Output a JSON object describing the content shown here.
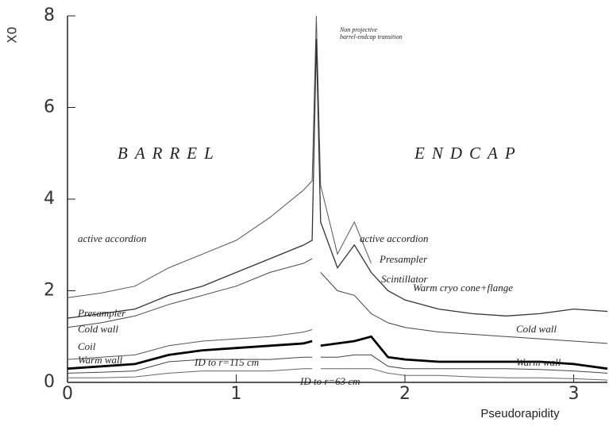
{
  "chart_data": {
    "type": "line",
    "ylabel": "X0",
    "xlabel": "Pseudorapidity",
    "x": [
      0,
      0.2,
      0.4,
      0.6,
      0.8,
      1.0,
      1.2,
      1.4,
      1.45,
      1.475,
      1.5,
      1.6,
      1.7,
      1.8,
      1.9,
      2.0,
      2.2,
      2.4,
      2.6,
      2.8,
      3.0,
      3.2
    ],
    "series": [
      {
        "color": "#555",
        "values": [
          1.85,
          1.95,
          2.1,
          2.5,
          2.8,
          3.1,
          3.6,
          4.2,
          4.4,
          8.0,
          4.3,
          2.8,
          3.5,
          2.6,
          null,
          null,
          null,
          null,
          null,
          null,
          null,
          null
        ]
      },
      {
        "color": "#333",
        "values": [
          1.4,
          1.5,
          1.6,
          1.9,
          2.1,
          2.4,
          2.7,
          3.0,
          3.1,
          7.5,
          3.5,
          2.5,
          3.0,
          2.4,
          2.0,
          1.8,
          1.6,
          1.5,
          1.45,
          1.5,
          1.6,
          1.55
        ]
      },
      {
        "color": "#444",
        "values": [
          1.2,
          1.3,
          1.45,
          1.7,
          1.9,
          2.1,
          2.4,
          2.6,
          2.7,
          null,
          2.4,
          2.0,
          1.9,
          1.5,
          1.3,
          1.2,
          1.1,
          1.05,
          1.0,
          0.95,
          0.9,
          0.85
        ]
      },
      {
        "color": "#555",
        "values": [
          0.5,
          0.55,
          0.6,
          0.8,
          0.9,
          0.95,
          1.0,
          1.1,
          1.15,
          null,
          null,
          null,
          null,
          null,
          null,
          null,
          null,
          null,
          null,
          null,
          null,
          null
        ]
      },
      {
        "color": "#000",
        "values": [
          0.3,
          0.35,
          0.4,
          0.6,
          0.7,
          0.75,
          0.8,
          0.85,
          0.9,
          null,
          0.8,
          0.85,
          0.9,
          1.0,
          0.55,
          0.5,
          0.45,
          0.45,
          0.45,
          0.45,
          0.4,
          0.3
        ]
      },
      {
        "color": "#444",
        "values": [
          0.2,
          0.22,
          0.25,
          0.45,
          0.5,
          0.5,
          0.5,
          0.55,
          0.55,
          null,
          0.55,
          0.55,
          0.6,
          0.6,
          0.35,
          0.3,
          0.3,
          0.3,
          0.3,
          0.28,
          0.25,
          0.2
        ]
      },
      {
        "color": "#666",
        "values": [
          0.1,
          0.1,
          0.12,
          0.2,
          0.25,
          0.25,
          0.25,
          0.3,
          0.3,
          null,
          0.3,
          0.3,
          0.3,
          0.3,
          0.2,
          0.15,
          0.15,
          0.12,
          0.1,
          0.1,
          0.08,
          0.05
        ]
      }
    ],
    "annotations": [
      "BARREL",
      "ENDCAP",
      "active accordion",
      "active accordion",
      "Presampler",
      "Presampler",
      "Scintillator",
      "Warm cryo cone+flange",
      "Cold wall",
      "Cold wall",
      "Coil",
      "Warm wall",
      "Warm wall",
      "ID to r=115 cm",
      "ID to r=63 cm",
      "Non projective",
      "barrel-endcap transition"
    ],
    "xlim": [
      0,
      3.2
    ],
    "ylim": [
      0,
      8
    ],
    "xticks": [
      0,
      1,
      2,
      3
    ],
    "yticks": [
      0,
      2,
      4,
      6,
      8
    ]
  }
}
